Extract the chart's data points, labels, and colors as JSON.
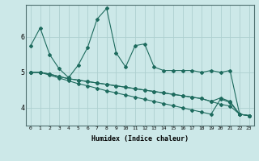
{
  "xlabel": "Humidex (Indice chaleur)",
  "bg_color": "#cce8e8",
  "grid_color": "#aed0d0",
  "line_color": "#1e6b5e",
  "xlim": [
    -0.5,
    23.5
  ],
  "ylim": [
    3.5,
    6.9
  ],
  "yticks": [
    4,
    5,
    6
  ],
  "xtick_labels": [
    "0",
    "1",
    "2",
    "3",
    "4",
    "5",
    "6",
    "7",
    "8",
    "9",
    "10",
    "11",
    "12",
    "13",
    "14",
    "15",
    "16",
    "17",
    "18",
    "19",
    "20",
    "21",
    "22",
    "23"
  ],
  "series1_x": [
    0,
    1,
    2,
    3,
    4,
    5,
    6,
    7,
    8,
    9,
    10,
    11,
    12,
    13,
    14,
    15,
    16,
    17,
    18,
    19,
    20,
    21,
    22,
    23
  ],
  "series1_y": [
    5.75,
    6.25,
    5.5,
    5.1,
    4.85,
    5.2,
    5.7,
    6.5,
    6.8,
    5.55,
    5.15,
    5.75,
    5.8,
    5.15,
    5.05,
    5.05,
    5.05,
    5.05,
    5.0,
    5.05,
    5.0,
    5.05,
    3.82,
    3.78
  ],
  "series2_x": [
    0,
    1,
    2,
    3,
    4,
    5,
    6,
    7,
    8,
    9,
    10,
    11,
    12,
    13,
    14,
    15,
    16,
    17,
    18,
    19,
    20,
    21,
    22,
    23
  ],
  "series2_y": [
    5.0,
    5.0,
    4.95,
    4.88,
    4.82,
    4.78,
    4.74,
    4.7,
    4.66,
    4.62,
    4.58,
    4.54,
    4.5,
    4.46,
    4.42,
    4.38,
    4.34,
    4.3,
    4.26,
    4.18,
    4.1,
    4.05,
    3.82,
    3.78
  ],
  "series3_x": [
    0,
    1,
    2,
    3,
    4,
    5,
    6,
    7,
    8,
    9,
    10,
    11,
    12,
    13,
    14,
    15,
    16,
    17,
    18,
    19,
    20,
    21,
    22,
    23
  ],
  "series3_y": [
    5.0,
    5.0,
    4.92,
    4.84,
    4.76,
    4.68,
    4.62,
    4.55,
    4.48,
    4.42,
    4.36,
    4.3,
    4.24,
    4.18,
    4.12,
    4.06,
    4.0,
    3.94,
    3.88,
    3.82,
    4.25,
    4.15,
    3.82,
    3.78
  ],
  "series4_x": [
    0,
    1,
    2,
    3,
    4,
    5,
    6,
    7,
    8,
    9,
    10,
    11,
    12,
    13,
    14,
    15,
    16,
    17,
    18,
    19,
    20,
    21,
    22,
    23
  ],
  "series4_y": [
    5.0,
    5.0,
    4.95,
    4.88,
    4.82,
    4.78,
    4.74,
    4.7,
    4.66,
    4.62,
    4.58,
    4.54,
    4.5,
    4.46,
    4.42,
    4.38,
    4.34,
    4.3,
    4.26,
    4.18,
    4.28,
    4.18,
    3.82,
    3.78
  ]
}
